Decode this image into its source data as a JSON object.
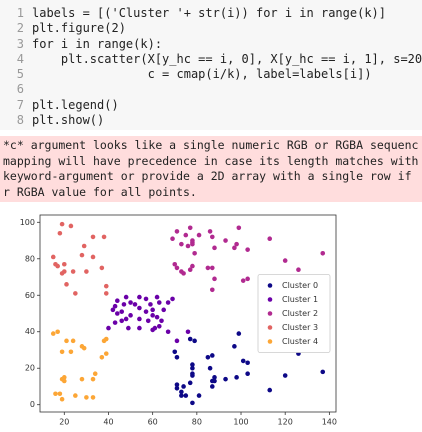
{
  "code": {
    "lines": [
      {
        "number": 1,
        "text": "labels = [('Cluster '+ str(i)) for i in range(k)]"
      },
      {
        "number": 2,
        "text": "plt.figure(2)"
      },
      {
        "number": 3,
        "text": "for i in range(k):"
      },
      {
        "number": 4,
        "text": "    plt.scatter(X[y_hc == i, 0], X[y_hc == i, 1], s=20,"
      },
      {
        "number": 5,
        "text": "                c = cmap(i/k), label=labels[i])"
      },
      {
        "number": 6
      },
      {
        "number": 7,
        "text": "plt.legend()"
      },
      {
        "number": 8,
        "text": "plt.show()"
      }
    ]
  },
  "warning": {
    "lines": [
      "*c* argument looks like a single numeric RGB or RGBA sequenc",
      "mapping will have precedence in case its length matches with",
      "keyword-argument or provide a 2D array with a single row if",
      "r RGBA value for all points."
    ]
  },
  "chart_data": {
    "type": "scatter",
    "xlim": [
      9,
      143
    ],
    "ylim": [
      -4,
      104
    ],
    "xticks": [
      20,
      40,
      60,
      80,
      100,
      120,
      140
    ],
    "yticks": [
      0,
      20,
      40,
      60,
      80,
      100
    ],
    "legend": "center right",
    "series": [
      {
        "name": "Cluster 0",
        "color": "#0d0887",
        "x": [
          70,
          71,
          71,
          73,
          73,
          74,
          75,
          77,
          77,
          78,
          78,
          78,
          78,
          78,
          79,
          81,
          85,
          86,
          87,
          87,
          88,
          88,
          93,
          97,
          98,
          99,
          101,
          103,
          103,
          113,
          120,
          126,
          137,
          71,
          87
        ],
        "values": [
          29,
          11,
          9,
          5,
          7,
          10,
          5,
          12,
          36,
          22,
          17,
          20,
          1,
          16,
          35,
          5,
          26,
          20,
          13,
          10,
          15,
          13,
          14,
          32,
          15,
          39,
          24,
          17,
          23,
          8,
          16,
          28,
          18,
          26,
          27
        ]
      },
      {
        "name": "Cluster 1",
        "color": "#6a00a8",
        "x": [
          40,
          42,
          43,
          43,
          44,
          46,
          46,
          47,
          48,
          48,
          49,
          50,
          50,
          54,
          54,
          54,
          54,
          57,
          57,
          58,
          59,
          60,
          60,
          60,
          61,
          62,
          62,
          63,
          63,
          64,
          65,
          67,
          67,
          69,
          71,
          76,
          44,
          52
        ],
        "values": [
          42,
          52,
          54,
          45,
          50,
          51,
          46,
          55,
          47,
          59,
          42,
          49,
          56,
          47,
          53,
          59,
          42,
          51,
          58,
          46,
          55,
          49,
          41,
          52,
          42,
          59,
          48,
          43,
          56,
          46,
          52,
          56,
          40,
          58,
          35,
          40,
          57,
          55
        ]
      },
      {
        "name": "Cluster 2",
        "color": "#b12a90",
        "x": [
          69,
          70,
          71,
          71,
          73,
          73,
          74,
          75,
          76,
          77,
          77,
          78,
          78,
          78,
          78,
          79,
          81,
          85,
          86,
          87,
          87,
          87,
          88,
          88,
          93,
          97,
          98,
          99,
          101,
          103,
          103,
          113,
          120,
          126,
          137
        ],
        "values": [
          91,
          77,
          95,
          75,
          88,
          73,
          72,
          93,
          87,
          97,
          74,
          90,
          88,
          76,
          89,
          83,
          93,
          75,
          95,
          63,
          75,
          92,
          86,
          69,
          90,
          86,
          88,
          97,
          68,
          85,
          69,
          91,
          79,
          74,
          83
        ]
      },
      {
        "name": "Cluster 3",
        "color": "#e16462",
        "x": [
          15,
          16,
          17,
          18,
          19,
          19,
          20,
          20,
          21,
          23,
          24,
          25,
          28,
          29,
          30,
          33,
          33,
          37,
          38,
          39,
          39
        ],
        "values": [
          81,
          77,
          76,
          94,
          72,
          99,
          77,
          73,
          66,
          98,
          73,
          61,
          82,
          87,
          73,
          92,
          81,
          75,
          92,
          61,
          65
        ]
      },
      {
        "name": "Cluster 4",
        "color": "#fca636",
        "x": [
          15,
          16,
          17,
          18,
          19,
          19,
          20,
          20,
          21,
          23,
          24,
          25,
          28,
          28,
          29,
          30,
          33,
          33,
          34,
          37,
          38,
          39,
          39,
          19
        ],
        "values": [
          39,
          6,
          40,
          6,
          3,
          14,
          15,
          13,
          35,
          29,
          35,
          5,
          14,
          32,
          31,
          4,
          4,
          14,
          17,
          26,
          35,
          36,
          28,
          29
        ]
      }
    ]
  }
}
